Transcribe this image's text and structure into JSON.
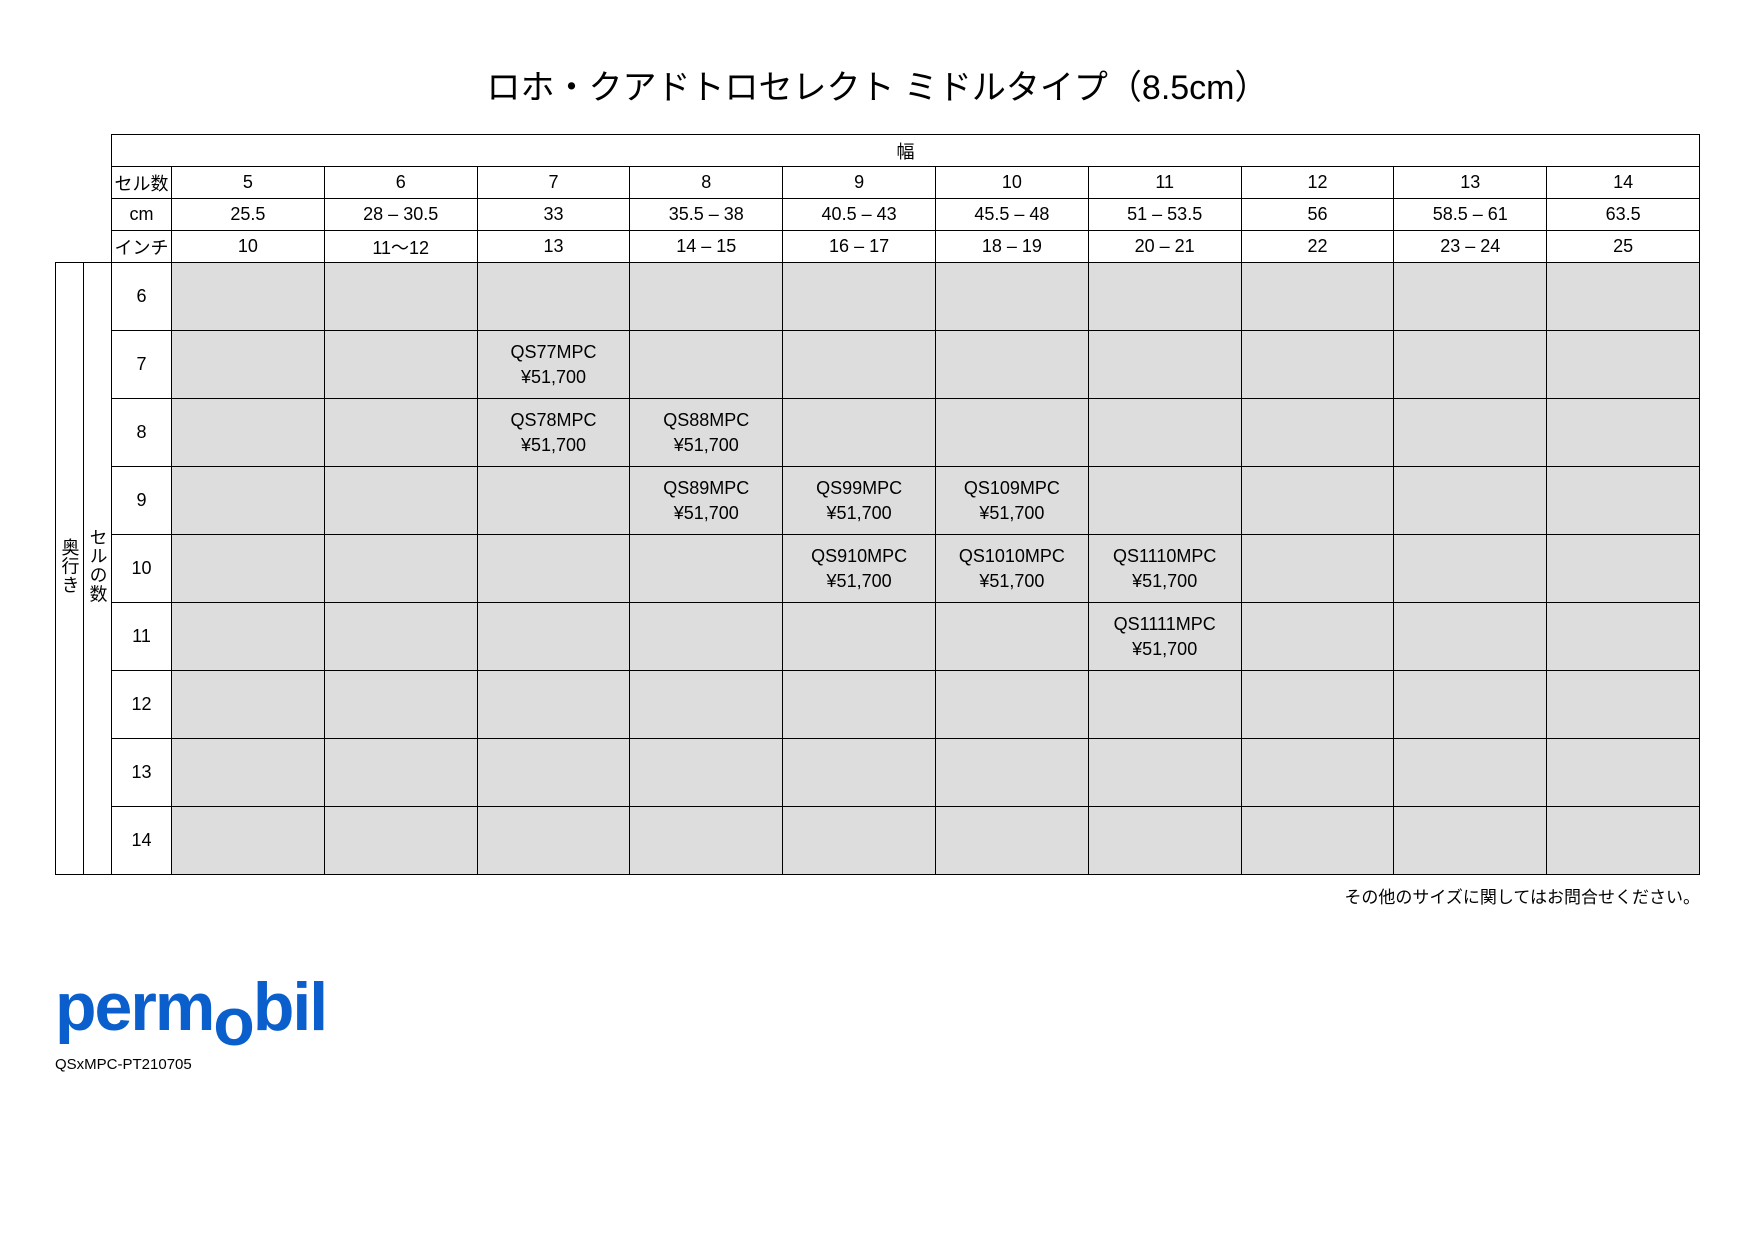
{
  "title": "ロホ・クアドトロセレクト ミドルタイプ（8.5cm）",
  "width_label": "幅",
  "depth_label": "奥行き",
  "cellnum_label": "セルの数",
  "header_rows": {
    "cellnum": {
      "label": "セル数",
      "vals": [
        "5",
        "6",
        "7",
        "8",
        "9",
        "10",
        "11",
        "12",
        "13",
        "14"
      ]
    },
    "cm": {
      "label": "cm",
      "vals": [
        "25.5",
        "28 – 30.5",
        "33",
        "35.5 – 38",
        "40.5 – 43",
        "45.5 – 48",
        "51 – 53.5",
        "56",
        "58.5 – 61",
        "63.5"
      ]
    },
    "inch": {
      "label": "インチ",
      "vals": [
        "10",
        "11～12",
        "13",
        "14 – 15",
        "16 – 17",
        "18 – 19",
        "20 – 21",
        "22",
        "23 – 24",
        "25"
      ]
    }
  },
  "body_rows": [
    {
      "label": "6",
      "cells": [
        "",
        "",
        "",
        "",
        "",
        "",
        "",
        "",
        "",
        ""
      ]
    },
    {
      "label": "7",
      "cells": [
        "",
        "",
        "QS77MPC|¥51,700",
        "",
        "",
        "",
        "",
        "",
        "",
        ""
      ]
    },
    {
      "label": "8",
      "cells": [
        "",
        "",
        "QS78MPC|¥51,700",
        "QS88MPC|¥51,700",
        "",
        "",
        "",
        "",
        "",
        ""
      ]
    },
    {
      "label": "9",
      "cells": [
        "",
        "",
        "",
        "QS89MPC|¥51,700",
        "QS99MPC|¥51,700",
        "QS109MPC|¥51,700",
        "",
        "",
        "",
        ""
      ]
    },
    {
      "label": "10",
      "cells": [
        "",
        "",
        "",
        "",
        "QS910MPC|¥51,700",
        "QS1010MPC|¥51,700",
        "QS1110MPC|¥51,700",
        "",
        "",
        ""
      ]
    },
    {
      "label": "11",
      "cells": [
        "",
        "",
        "",
        "",
        "",
        "",
        "QS1111MPC|¥51,700",
        "",
        "",
        ""
      ]
    },
    {
      "label": "12",
      "cells": [
        "",
        "",
        "",
        "",
        "",
        "",
        "",
        "",
        "",
        ""
      ]
    },
    {
      "label": "13",
      "cells": [
        "",
        "",
        "",
        "",
        "",
        "",
        "",
        "",
        "",
        ""
      ]
    },
    {
      "label": "14",
      "cells": [
        "",
        "",
        "",
        "",
        "",
        "",
        "",
        "",
        "",
        ""
      ]
    }
  ],
  "footnote": "その他のサイズに関してはお問合せください。",
  "logo_text": "permobil",
  "doc_code": "QSxMPC-PT210705",
  "colors": {
    "cell_bg": "#dddddd",
    "border": "#000000",
    "logo": "#0a5fcc",
    "page_bg": "#ffffff"
  }
}
